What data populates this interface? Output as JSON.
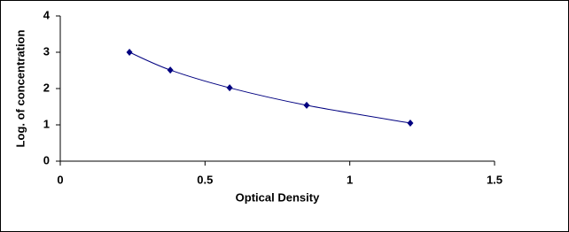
{
  "chart_data": {
    "type": "scatter",
    "x_label": "Optical Density",
    "y_label": "Log. of  concentration",
    "series": [
      {
        "x": [
          0.239,
          0.38,
          0.585,
          0.851,
          1.209
        ],
        "values": [
          3.0,
          2.51,
          2.02,
          1.54,
          1.05
        ],
        "color": "#000080"
      }
    ],
    "smooth_line": true,
    "xlim": [
      0,
      1.5
    ],
    "xticks": [
      0,
      0.5,
      1,
      1.5
    ],
    "ylim": [
      0,
      4
    ],
    "yticks": [
      0,
      1,
      2,
      3,
      4
    ],
    "grid": false
  }
}
